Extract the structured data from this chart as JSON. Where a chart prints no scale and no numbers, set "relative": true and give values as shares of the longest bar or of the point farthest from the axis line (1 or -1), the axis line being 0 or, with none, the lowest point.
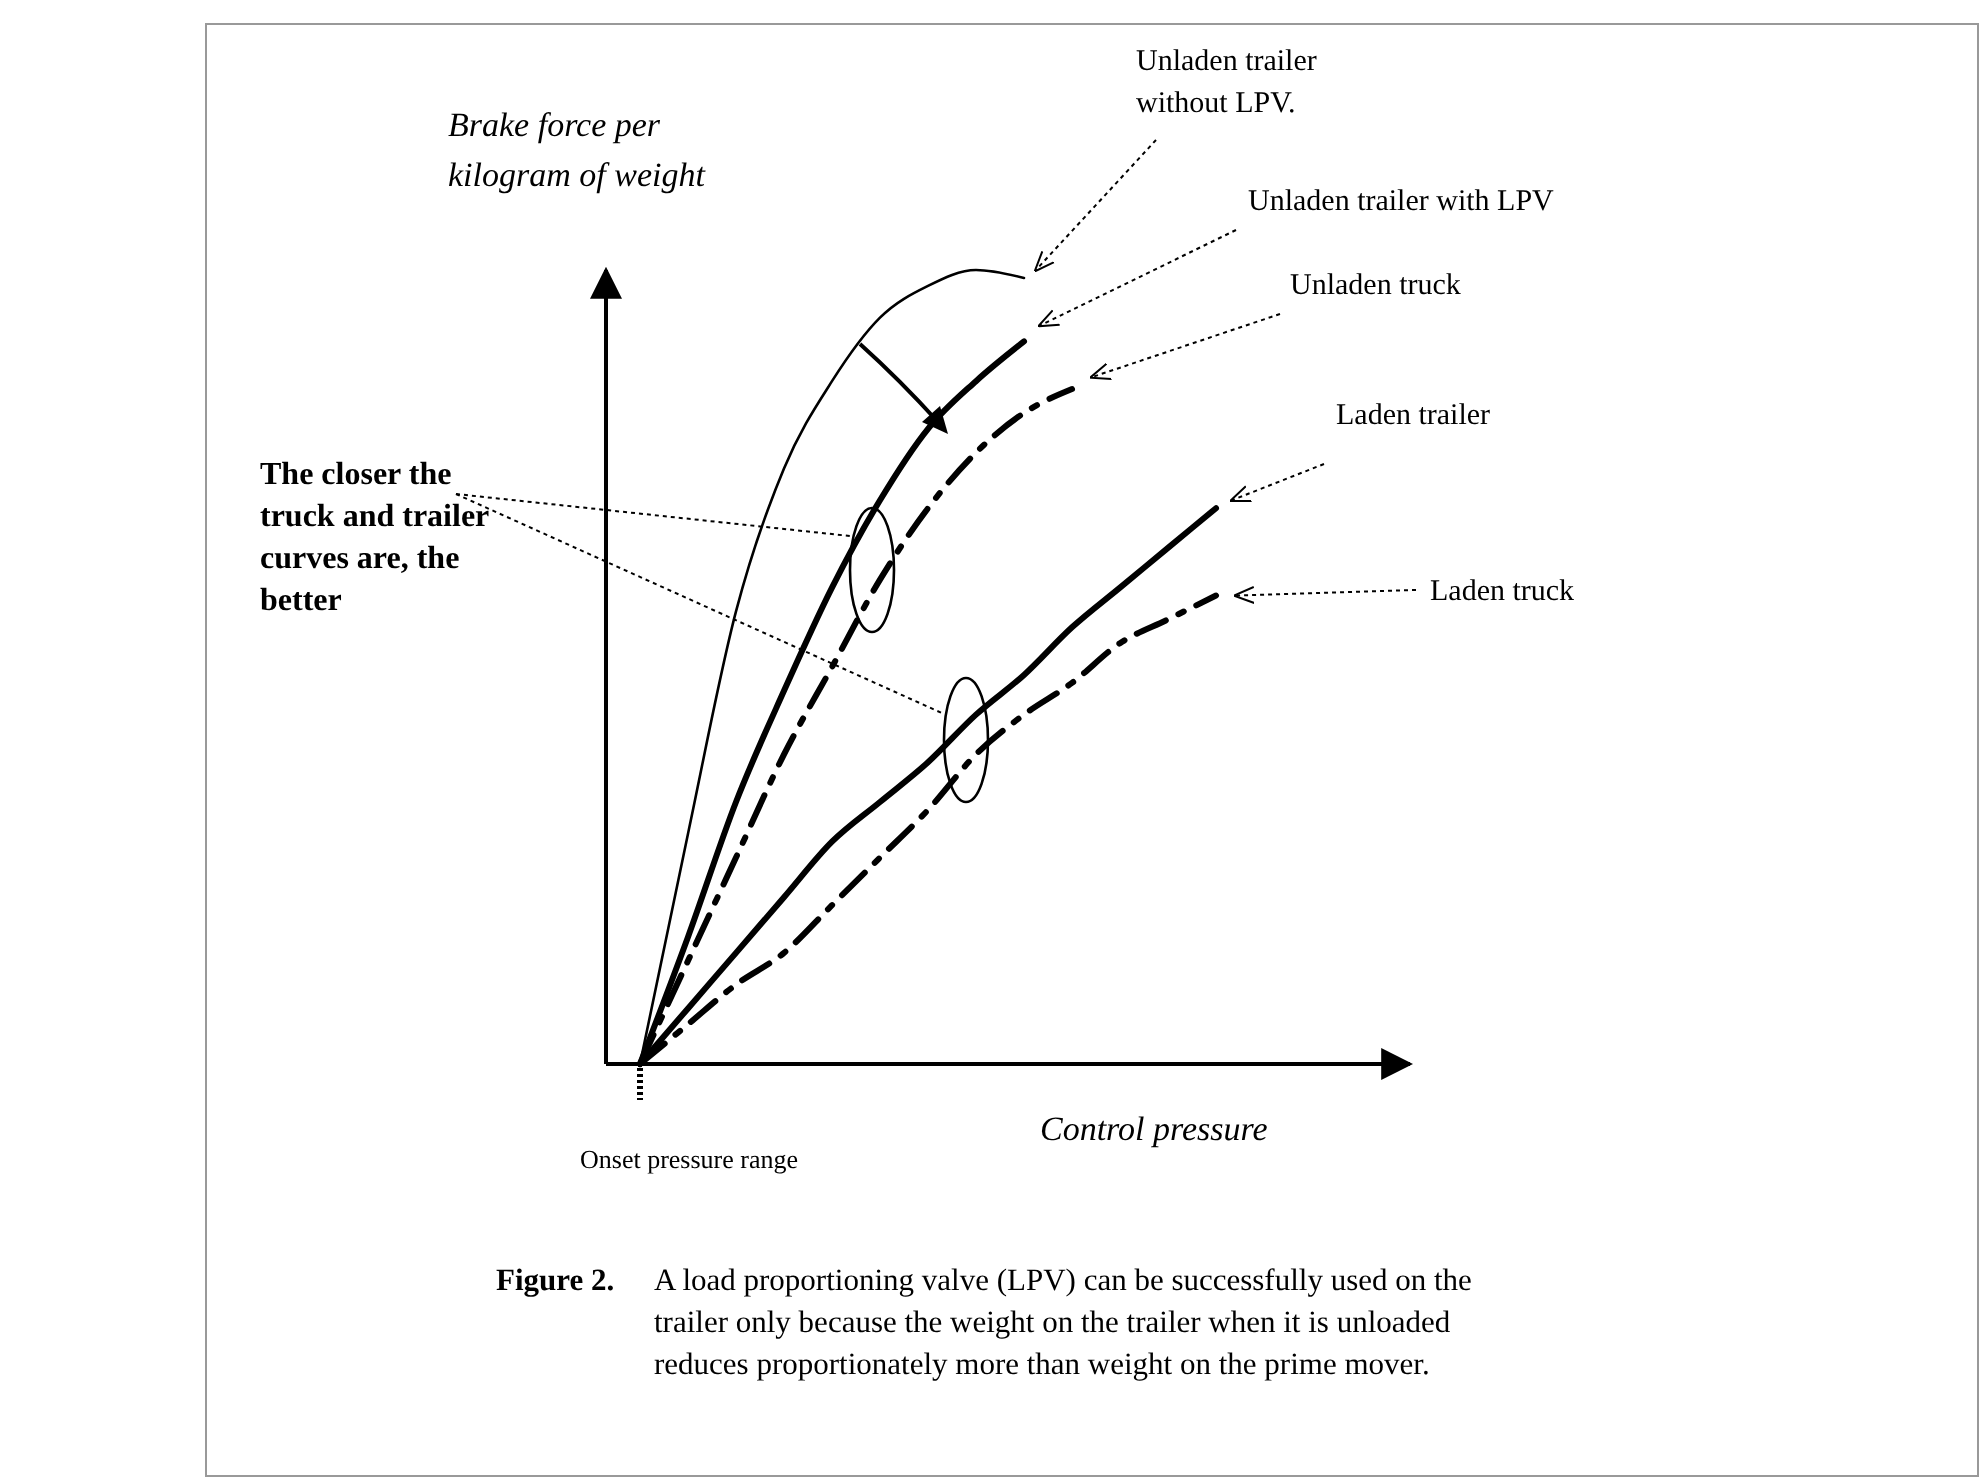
{
  "chart_data": {
    "type": "line",
    "relative": true,
    "xlabel": "Control pressure",
    "ylabel": "Brake force per kilogram of weight",
    "categories": [
      null,
      null,
      null,
      null,
      null,
      null,
      null,
      null,
      null,
      null,
      null,
      null,
      null
    ],
    "series": [
      {
        "name": "Unladen trailer without LPV.",
        "color": "#000000",
        "line_style": "solid",
        "values": [
          0,
          0.29,
          0.57,
          0.75,
          0.86,
          0.94,
          0.98,
          1.0,
          0.99,
          null,
          null,
          null,
          null
        ]
      },
      {
        "name": "Unladen trailer with LPV",
        "color": "#000000",
        "line_style": "solid",
        "values": [
          0,
          0.16,
          0.33,
          0.47,
          0.6,
          0.71,
          0.8,
          0.86,
          0.91,
          null,
          null,
          null,
          null
        ]
      },
      {
        "name": "Unladen truck",
        "color": "#000000",
        "line_style": "dashed",
        "values": [
          0,
          0.13,
          0.26,
          0.39,
          0.5,
          0.61,
          0.7,
          0.77,
          0.82,
          0.85,
          null,
          null,
          null
        ]
      },
      {
        "name": "Laden trailer",
        "color": "#000000",
        "line_style": "solid",
        "values": [
          0,
          0.07,
          0.14,
          0.21,
          0.28,
          0.33,
          0.38,
          0.44,
          0.49,
          0.55,
          0.6,
          0.65,
          0.7
        ]
      },
      {
        "name": "Laden truck",
        "color": "#000000",
        "line_style": "dashed",
        "values": [
          0,
          0.05,
          0.1,
          0.14,
          0.2,
          0.26,
          0.32,
          0.39,
          0.44,
          0.48,
          0.53,
          0.56,
          0.59
        ]
      }
    ],
    "annotations": [
      "The closer the truck and trailer curves are, the better",
      "Onset pressure range",
      "Figure 2.",
      "A load proportioning valve (LPV) can be successfully used on the trailer only because the weight on the trailer when it is unloaded reduces proportionately more than weight on the prime mover."
    ],
    "legend": false,
    "grid": false,
    "marker": "none"
  }
}
